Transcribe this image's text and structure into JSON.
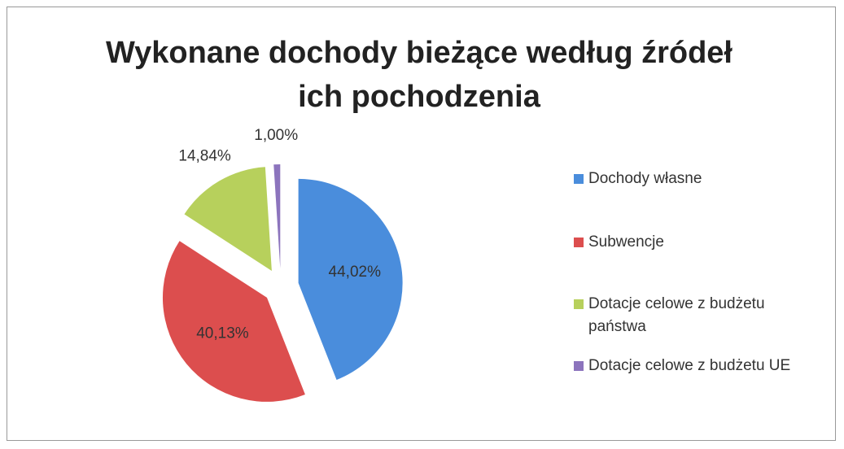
{
  "chart_data": {
    "type": "pie",
    "title": "Wykonane dochody bieżące według źródeł ich pochodzenia",
    "categories": [
      "Dochody własne",
      "Subwencje",
      "Dotacje celowe z budżetu państwa",
      "Dotacje celowe z budżetu UE"
    ],
    "values": [
      44.02,
      40.13,
      14.84,
      1.0
    ],
    "value_labels": [
      "44,02%",
      "40,13%",
      "14,84%",
      "1,00%"
    ],
    "colors": [
      "#4a8ddc",
      "#dc4e4e",
      "#b7d05c",
      "#8c74bd"
    ],
    "legend": "right"
  }
}
